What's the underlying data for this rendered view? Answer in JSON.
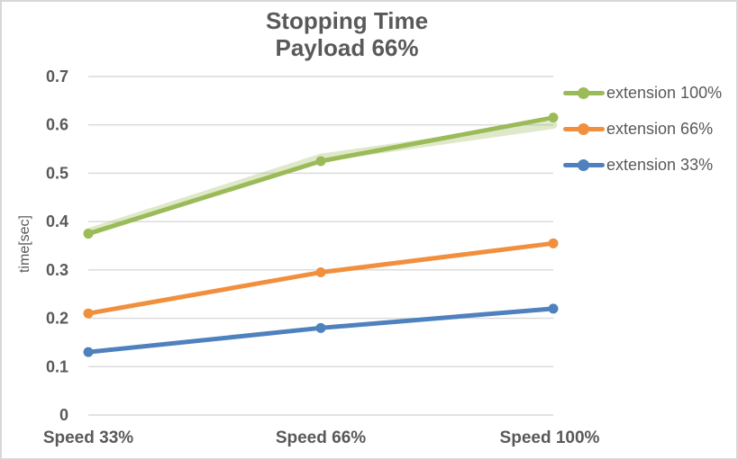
{
  "chart_data": {
    "type": "line",
    "title": "Stopping Time",
    "subtitle": "Payload 66%",
    "ylabel": "time[sec]",
    "xlabel": "",
    "categories": [
      "Speed 33%",
      "Speed 66%",
      "Speed 100%"
    ],
    "ylim": [
      0,
      0.7
    ],
    "y_ticks": [
      0,
      0.1,
      0.2,
      0.3,
      0.4,
      0.5,
      0.6,
      0.7
    ],
    "grid": true,
    "legend_position": "right",
    "series": [
      {
        "name": "extension 100%",
        "color": "#9bbb59",
        "values": [
          0.375,
          0.525,
          0.615
        ]
      },
      {
        "name": "extension 66%",
        "color": "#f0903f",
        "values": [
          0.21,
          0.295,
          0.355
        ]
      },
      {
        "name": "extension 33%",
        "color": "#4e81bd",
        "values": [
          0.13,
          0.18,
          0.22
        ]
      }
    ],
    "shadow_series": {
      "color": "#9bbb59",
      "opacity": 0.32,
      "values": [
        0.378,
        0.532,
        0.6
      ]
    },
    "colors": {
      "text": "#595959",
      "gridline": "#d9d9d9",
      "border": "#d7d7d7",
      "background": "#ffffff"
    }
  }
}
